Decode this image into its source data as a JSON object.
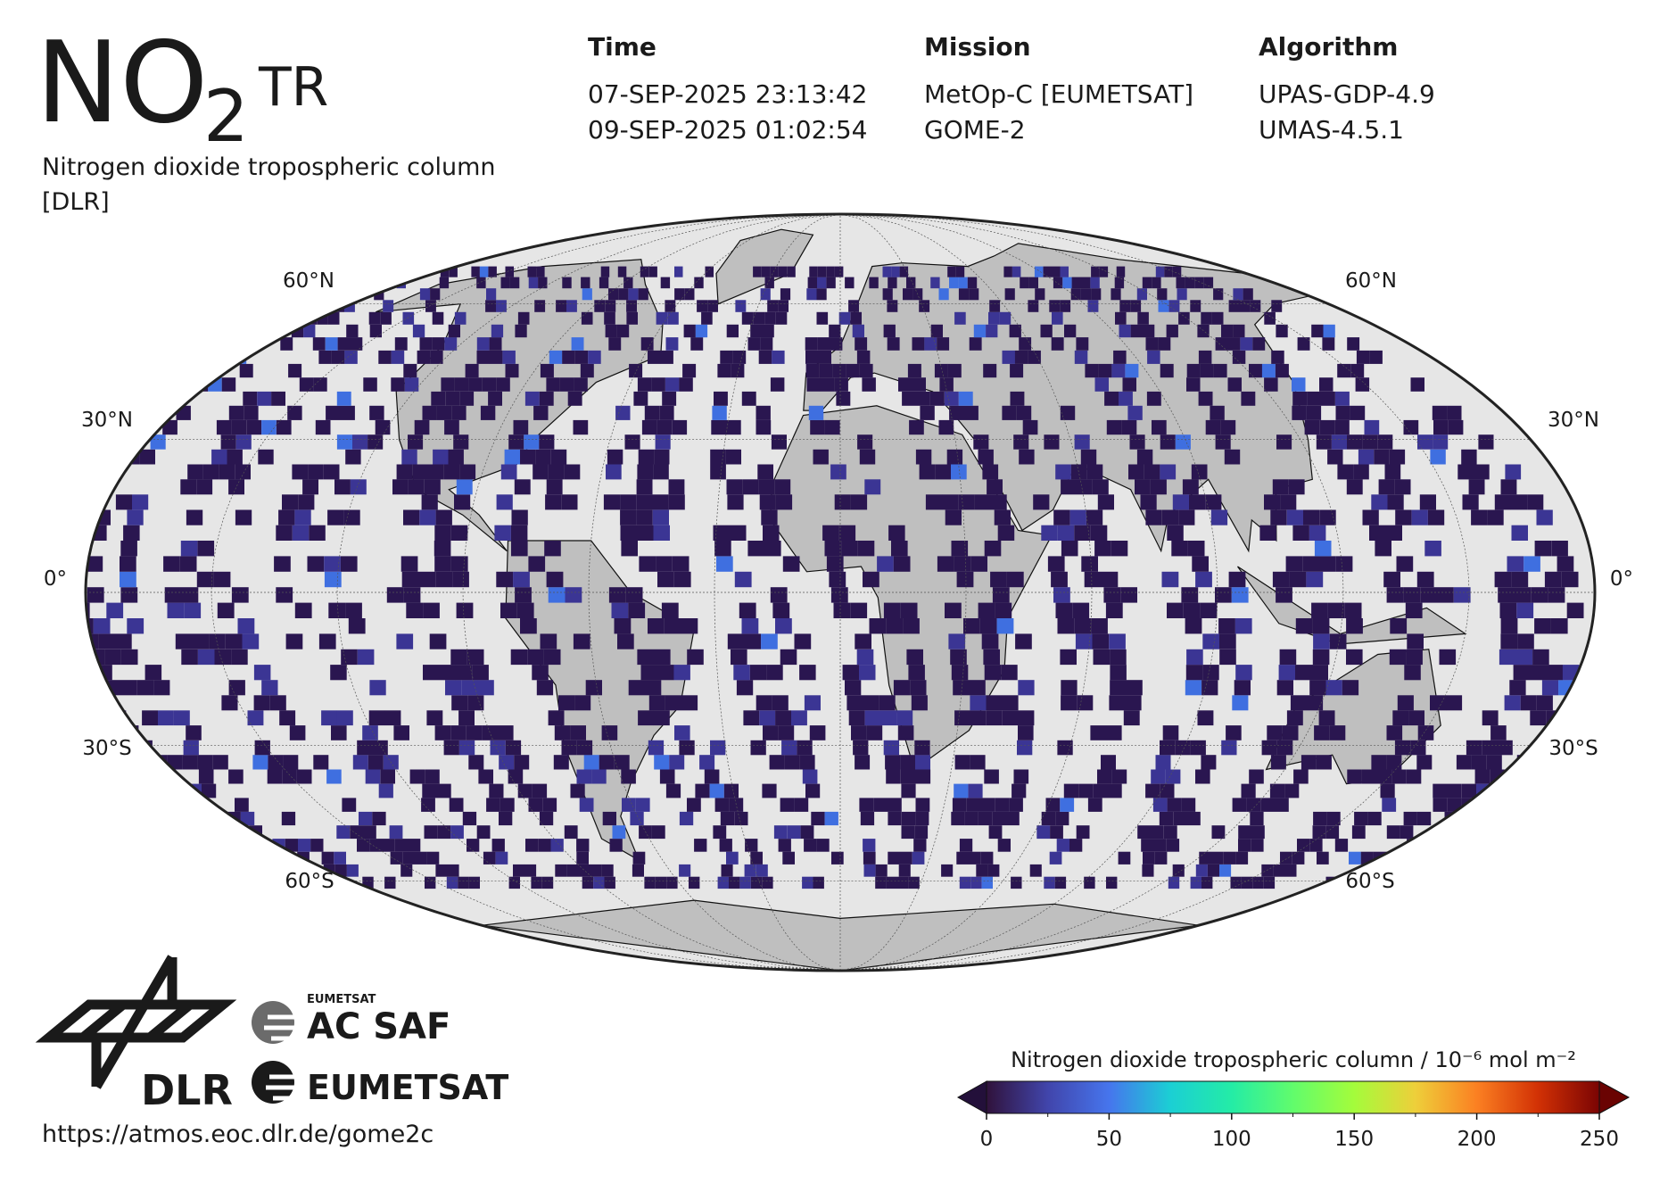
{
  "header": {
    "title": {
      "main": "NO",
      "subscript": "2",
      "superscript": "TR"
    },
    "subtitle": "Nitrogen dioxide tropospheric column",
    "source": "[DLR]"
  },
  "info": [
    {
      "heading": "Time",
      "lines": [
        "07-SEP-2025 23:13:42",
        "09-SEP-2025 01:02:54"
      ]
    },
    {
      "heading": "Mission",
      "lines": [
        "MetOp-C [EUMETSAT]",
        "GOME-2"
      ]
    },
    {
      "heading": "Algorithm",
      "lines": [
        "UPAS-GDP-4.9",
        "UMAS-4.5.1"
      ]
    }
  ],
  "map": {
    "projection": "mollweide",
    "lat_labels": {
      "left": [
        "60°N",
        "30°N",
        "0°",
        "30°S",
        "60°S"
      ],
      "right": [
        "60°N",
        "30°N",
        "0°",
        "30°S",
        "60°S"
      ]
    }
  },
  "colorbar": {
    "title": "Nitrogen dioxide tropospheric column / 10⁻⁶ mol m⁻²",
    "lim": [
      0,
      250
    ],
    "ticks": [
      0,
      50,
      100,
      150,
      200,
      250
    ]
  },
  "logos": {
    "dlr": "DLR",
    "acsaf_top": "EUMETSAT",
    "acsaf": "AC SAF",
    "eumetsat": "EUMETSAT"
  },
  "footer": {
    "url": "https://atmos.eoc.dlr.de/gome2c"
  }
}
